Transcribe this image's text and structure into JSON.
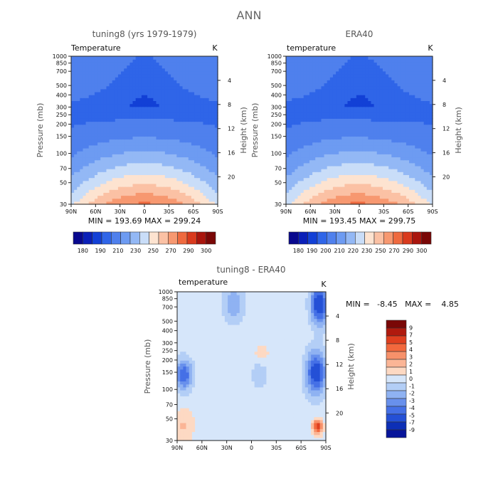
{
  "figure": {
    "title": "ANN"
  },
  "scale": {
    "pressure_ticks": [
      "30",
      "50",
      "70",
      "100",
      "150",
      "200",
      "250",
      "300",
      "400",
      "500",
      "700",
      "850",
      "1000"
    ],
    "pressure_values": [
      30,
      50,
      70,
      100,
      150,
      200,
      250,
      300,
      400,
      500,
      700,
      850,
      1000
    ],
    "height_ticks_a": [
      "20",
      "16",
      "12",
      "8",
      "4"
    ],
    "height_values_a": [
      20,
      16,
      12,
      8,
      4
    ],
    "height_ticks_b": [
      "20",
      "16",
      "12",
      "8",
      "4"
    ],
    "height_values_b": [
      20,
      16,
      12,
      8,
      4
    ],
    "lat_ticks": [
      "90N",
      "60N",
      "30N",
      "0",
      "30S",
      "60S",
      "90S"
    ],
    "lat_values": [
      90,
      60,
      30,
      0,
      -30,
      -60,
      -90
    ]
  },
  "chart_data": [
    {
      "type": "heatmap",
      "title": "tuning8 (yrs 1979-1979)",
      "variable": "Temperature",
      "units": "K",
      "xlabel": "",
      "ylabel": "Pressure (mb)",
      "ylabel_right": "Height (km)",
      "xlim": [
        90,
        -90
      ],
      "ylim": [
        1000,
        30
      ],
      "y_scale": "log",
      "stats": "MIN = 193.69   MAX = 299.24",
      "min": 193.69,
      "max": 299.24,
      "levels": [
        180,
        190,
        200,
        210,
        220,
        230,
        240,
        250,
        260,
        270,
        280,
        290,
        300
      ],
      "level_labels": [
        "180",
        "190",
        "210",
        "230",
        "250",
        "270",
        "290",
        "300"
      ],
      "colorbar_orientation": "horizontal"
    },
    {
      "type": "heatmap",
      "title": "ERA40",
      "variable": "temperature",
      "units": "K",
      "xlabel": "",
      "ylabel": "Pressure (mb)",
      "ylabel_right": "Height (km)",
      "xlim": [
        90,
        -90
      ],
      "ylim": [
        1000,
        30
      ],
      "y_scale": "log",
      "stats": "MIN = 193.45   MAX = 299.75",
      "min": 193.45,
      "max": 299.75,
      "levels": [
        180,
        190,
        200,
        210,
        220,
        230,
        240,
        250,
        260,
        270,
        280,
        290,
        300
      ],
      "level_labels": [
        "180",
        "190",
        "200",
        "210",
        "220",
        "230",
        "250",
        "270",
        "290",
        "300"
      ],
      "colorbar_orientation": "horizontal"
    },
    {
      "type": "heatmap",
      "title": "tuning8 - ERA40",
      "variable": "temperature",
      "units": "K",
      "xlabel": "",
      "ylabel": "Pressure (mb)",
      "ylabel_right": "Height (km)",
      "xlim": [
        90,
        -90
      ],
      "ylim": [
        1000,
        30
      ],
      "y_scale": "log",
      "stats": "MIN =   -8.45   MAX =    4.85",
      "min": -8.45,
      "max": 4.85,
      "levels": [
        -9,
        -7,
        -5,
        -4,
        -3,
        -2,
        -1,
        0,
        1,
        2,
        3,
        4,
        5,
        7,
        9
      ],
      "level_labels": [
        "9",
        "7",
        "5",
        "4",
        "3",
        "2",
        "1",
        "0",
        "-1",
        "-2",
        "-3",
        "-4",
        "-5",
        "-7",
        "-9"
      ],
      "colorbar_orientation": "vertical"
    }
  ],
  "colors": {
    "temp_scale": [
      "#08088e",
      "#0a1fb8",
      "#1240d6",
      "#2f65e8",
      "#4f80ed",
      "#6d9bf2",
      "#93b8f5",
      "#c9ddf8",
      "#fde3d0",
      "#fbc1a4",
      "#f79870",
      "#ef6a3f",
      "#d93a1d",
      "#a9150d",
      "#7a0706"
    ],
    "diff_scale": [
      "#7a0706",
      "#b01a0e",
      "#df3f1f",
      "#f2683d",
      "#f7916a",
      "#fbb596",
      "#fdd9c3",
      "#d6e6fa",
      "#b3cef6",
      "#8fb2f2",
      "#6890ec",
      "#4570e6",
      "#2450d6",
      "#0d2fb6",
      "#07149a"
    ]
  }
}
